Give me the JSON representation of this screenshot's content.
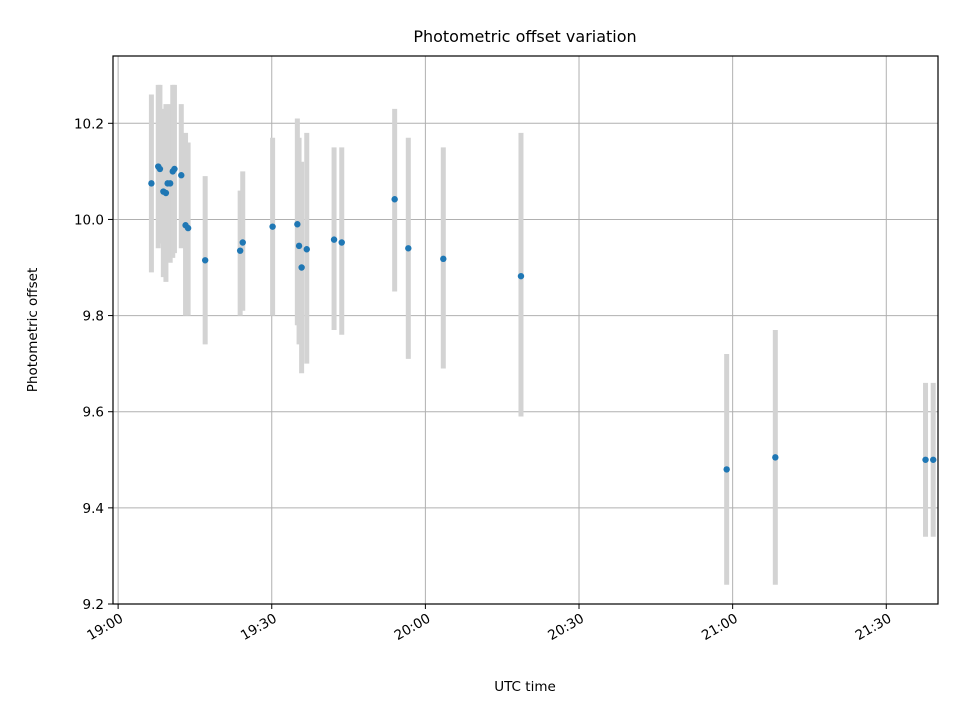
{
  "chart_data": {
    "type": "scatter",
    "title": "Photometric offset variation",
    "xlabel": "UTC time",
    "ylabel": "Photometric offset",
    "x_axis_type": "time",
    "xlim": [
      "18:59",
      "21:36"
    ],
    "ylim": [
      9.2,
      10.34
    ],
    "x_ticks": [
      "19:00",
      "19:30",
      "20:00",
      "20:30",
      "21:00",
      "21:30"
    ],
    "y_ticks": [
      9.2,
      9.4,
      9.6,
      9.8,
      10.0,
      10.2
    ],
    "grid": true,
    "colors": {
      "marker": "#1f77b4",
      "errorbar": "#d3d3d3",
      "grid": "#b0b0b0"
    },
    "points": [
      {
        "t": "19:06:30",
        "y": 10.075,
        "ylo": 9.89,
        "yhi": 10.26
      },
      {
        "t": "19:07:50",
        "y": 10.11,
        "ylo": 9.94,
        "yhi": 10.28
      },
      {
        "t": "19:08:10",
        "y": 10.105,
        "ylo": 9.95,
        "yhi": 10.28
      },
      {
        "t": "19:08:50",
        "y": 10.058,
        "ylo": 9.88,
        "yhi": 10.23
      },
      {
        "t": "19:09:20",
        "y": 10.055,
        "ylo": 9.87,
        "yhi": 10.24
      },
      {
        "t": "19:09:40",
        "y": 10.075,
        "ylo": 9.93,
        "yhi": 10.22
      },
      {
        "t": "19:10:10",
        "y": 10.075,
        "ylo": 9.91,
        "yhi": 10.24
      },
      {
        "t": "19:10:40",
        "y": 10.1,
        "ylo": 9.92,
        "yhi": 10.28
      },
      {
        "t": "19:11:00",
        "y": 10.105,
        "ylo": 9.93,
        "yhi": 10.28
      },
      {
        "t": "19:12:20",
        "y": 10.092,
        "ylo": 9.94,
        "yhi": 10.24
      },
      {
        "t": "19:13:10",
        "y": 9.988,
        "ylo": 9.8,
        "yhi": 10.18
      },
      {
        "t": "19:13:40",
        "y": 9.982,
        "ylo": 9.8,
        "yhi": 10.16
      },
      {
        "t": "19:17:00",
        "y": 9.915,
        "ylo": 9.74,
        "yhi": 10.09
      },
      {
        "t": "19:23:50",
        "y": 9.935,
        "ylo": 9.8,
        "yhi": 10.06
      },
      {
        "t": "19:24:20",
        "y": 9.952,
        "ylo": 9.81,
        "yhi": 10.1
      },
      {
        "t": "19:30:10",
        "y": 9.985,
        "ylo": 9.8,
        "yhi": 10.17
      },
      {
        "t": "19:35:00",
        "y": 9.99,
        "ylo": 9.78,
        "yhi": 10.21
      },
      {
        "t": "19:35:20",
        "y": 9.945,
        "ylo": 9.74,
        "yhi": 10.17
      },
      {
        "t": "19:35:50",
        "y": 9.9,
        "ylo": 9.68,
        "yhi": 10.12
      },
      {
        "t": "19:36:50",
        "y": 9.938,
        "ylo": 9.7,
        "yhi": 10.18
      },
      {
        "t": "19:42:10",
        "y": 9.958,
        "ylo": 9.77,
        "yhi": 10.15
      },
      {
        "t": "19:43:40",
        "y": 9.952,
        "ylo": 9.76,
        "yhi": 10.15
      },
      {
        "t": "19:54:00",
        "y": 10.042,
        "ylo": 9.85,
        "yhi": 10.23
      },
      {
        "t": "19:56:40",
        "y": 9.94,
        "ylo": 9.71,
        "yhi": 10.17
      },
      {
        "t": "20:03:30",
        "y": 9.918,
        "ylo": 9.69,
        "yhi": 10.15
      },
      {
        "t": "20:18:40",
        "y": 9.882,
        "ylo": 9.59,
        "yhi": 10.18
      },
      {
        "t": "20:58:50",
        "y": 9.48,
        "ylo": 9.24,
        "yhi": 9.72
      },
      {
        "t": "21:08:20",
        "y": 9.505,
        "ylo": 9.24,
        "yhi": 9.77
      },
      {
        "t": "21:37:40",
        "y": 9.5,
        "ylo": 9.34,
        "yhi": 9.66
      },
      {
        "t": "21:39:10",
        "y": 9.5,
        "ylo": 9.34,
        "yhi": 9.66
      }
    ]
  }
}
